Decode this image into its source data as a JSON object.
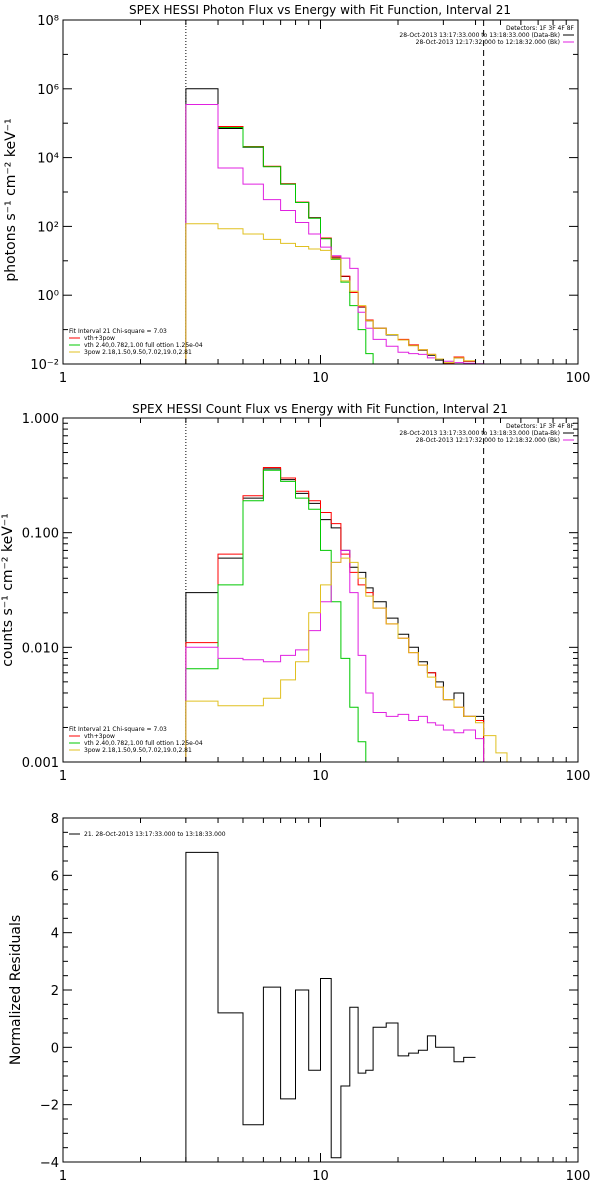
{
  "chart_data": [
    {
      "type": "line",
      "title": "SPEX HESSI Photon Flux vs Energy with Fit Function, Interval 21",
      "xlabel": "",
      "ylabel": "photons s⁻¹ cm⁻² keV⁻¹",
      "x_scale": "log",
      "y_scale": "log",
      "xlim": [
        1,
        100
      ],
      "ylim": [
        0.01,
        100000000
      ],
      "x_ticks": [
        {
          "v": 1,
          "t": "1"
        },
        {
          "v": 10,
          "t": "10"
        },
        {
          "v": 100,
          "t": "100"
        }
      ],
      "y_ticks": [
        {
          "v": 0.01,
          "t": "10⁻²"
        },
        {
          "v": 1,
          "t": "10⁰"
        },
        {
          "v": 100,
          "t": "10²"
        },
        {
          "v": 10000,
          "t": "10⁴"
        },
        {
          "v": 1000000,
          "t": "10⁶"
        },
        {
          "v": 100000000,
          "t": "10⁸"
        }
      ],
      "header": [
        "Detectors: 1F 3F 4F 8F",
        "28-Oct-2013 13:17:33.000 to 13:18:33.000 (Data-Bk)",
        "28-Oct-2013 12:17:32.000 to 12:18:32.000 (Bk)"
      ],
      "vlines": [
        {
          "x": 3,
          "style": "dotted"
        },
        {
          "x": 43,
          "style": "dashed"
        }
      ],
      "legend": {
        "title": "Fit Interval 21    Chi-square = 7.03",
        "entries": [
          "vth+3pow",
          "vth 2.40,0.782,1.00   full ottion 1.25e-04",
          "3pow 2.18,1.50,9.50,7.02,19.0,2.81"
        ]
      },
      "edges": [
        3,
        4,
        5,
        6,
        7,
        8,
        9,
        10,
        11,
        12,
        13,
        14,
        15,
        16,
        18,
        20,
        22,
        24,
        26,
        28,
        30,
        33,
        36,
        40,
        43
      ],
      "series": [
        {
          "color": "#000000",
          "values": [
            1000000,
            70000,
            20000,
            5500,
            1700,
            500,
            180,
            45,
            12,
            3.5,
            1.2,
            0.45,
            0.18,
            0.11,
            0.07,
            0.05,
            0.035,
            0.025,
            0.018,
            0.013,
            0.01,
            0.015,
            0.012,
            0.009
          ]
        },
        {
          "color": "#ff0000",
          "values": [
            350000,
            80000,
            21000,
            5600,
            1750,
            510,
            175,
            46,
            13,
            3.6,
            1.2,
            0.46,
            0.19,
            0.11,
            0.072,
            0.052,
            0.036,
            0.026,
            0.019,
            0.014,
            0.0105,
            0.016,
            0.012,
            0.009
          ]
        },
        {
          "color": "#00c800",
          "values": [
            350000,
            75000,
            20500,
            5450,
            1700,
            495,
            172,
            44,
            11,
            2.4,
            0.5,
            0.1,
            0.02,
            0.0095
          ]
        },
        {
          "color": "#e020e0",
          "values": [
            350000,
            5000,
            1700,
            600,
            290,
            130,
            60,
            25,
            14,
            12,
            6,
            0.32,
            0.11,
            0.052,
            0.033,
            0.022,
            0.02,
            0.019,
            0.015,
            0.014,
            0.012,
            0.011,
            0.0105,
            0.0102
          ]
        },
        {
          "color": "#e0c020",
          "values": [
            120,
            85,
            60,
            42,
            32,
            26,
            22,
            20,
            11.5,
            2.6,
            1.3,
            0.5,
            0.18,
            0.11,
            0.072,
            0.05,
            0.034,
            0.026,
            0.019,
            0.014,
            0.011,
            0.015,
            0.0125,
            0.0095
          ]
        }
      ]
    },
    {
      "type": "line",
      "title": "SPEX HESSI Count Flux vs Energy with Fit Function, Interval 21",
      "xlabel": "",
      "ylabel": "counts s⁻¹ cm⁻² keV⁻¹",
      "x_scale": "log",
      "y_scale": "log",
      "xlim": [
        1,
        100
      ],
      "ylim": [
        0.001,
        1
      ],
      "x_ticks": [
        {
          "v": 1,
          "t": "1"
        },
        {
          "v": 10,
          "t": "10"
        },
        {
          "v": 100,
          "t": "100"
        }
      ],
      "y_ticks": [
        {
          "v": 0.001,
          "t": "0.001"
        },
        {
          "v": 0.01,
          "t": "0.010"
        },
        {
          "v": 0.1,
          "t": "0.100"
        },
        {
          "v": 1,
          "t": "1.000"
        }
      ],
      "header": [
        "Detectors: 1F 3F 4F 8F",
        "28-Oct-2013 13:17:33.000 to 13:18:33.000 (Data-Bk)",
        "28-Oct-2013 12:17:32.000 to 12:18:32.000 (Bk)"
      ],
      "vlines": [
        {
          "x": 3,
          "style": "dotted"
        },
        {
          "x": 43,
          "style": "dashed"
        }
      ],
      "legend": {
        "title": "Fit Interval 21    Chi-square = 7.03",
        "entries": [
          "vth+3pow",
          "vth 2.40,0.782,1.00   full ottion 1.25e-04",
          "3pow 2.18,1.50,9.50,7.02,19.0,2.81"
        ]
      },
      "edges": [
        3,
        4,
        5,
        6,
        7,
        8,
        9,
        10,
        11,
        12,
        13,
        14,
        15,
        16,
        18,
        20,
        22,
        24,
        26,
        28,
        30,
        33,
        36,
        40,
        43,
        48,
        53
      ],
      "series": [
        {
          "color": "#000000",
          "values": [
            0.03,
            0.06,
            0.2,
            0.36,
            0.29,
            0.22,
            0.18,
            0.13,
            0.11,
            0.07,
            0.05,
            0.045,
            0.033,
            0.025,
            0.018,
            0.013,
            0.01,
            0.0075,
            0.006,
            0.005,
            0.0035,
            0.004,
            0.0025,
            0.0025
          ]
        },
        {
          "color": "#ff0000",
          "values": [
            0.011,
            0.065,
            0.21,
            0.37,
            0.3,
            0.23,
            0.19,
            0.15,
            0.12,
            0.065,
            0.045,
            0.035,
            0.03,
            0.022,
            0.016,
            0.012,
            0.009,
            0.007,
            0.006,
            0.0045,
            0.0035,
            0.003,
            0.0025,
            0.0023
          ]
        },
        {
          "color": "#00c800",
          "values": [
            0.0065,
            0.035,
            0.19,
            0.35,
            0.28,
            0.2,
            0.16,
            0.07,
            0.025,
            0.008,
            0.003,
            0.0015,
            0.0009
          ]
        },
        {
          "color": "#e020e0",
          "values": [
            0.01,
            0.008,
            0.0078,
            0.0075,
            0.0085,
            0.0095,
            0.014,
            0.025,
            0.055,
            0.07,
            0.03,
            0.0085,
            0.004,
            0.0027,
            0.0025,
            0.0026,
            0.0023,
            0.0025,
            0.0022,
            0.0021,
            0.0019,
            0.0018,
            0.0019,
            0.0016
          ]
        },
        {
          "color": "#e0c020",
          "values": [
            0.0034,
            0.0031,
            0.0031,
            0.0036,
            0.0052,
            0.0075,
            0.02,
            0.035,
            0.055,
            0.06,
            0.055,
            0.04,
            0.028,
            0.022,
            0.016,
            0.012,
            0.009,
            0.007,
            0.0055,
            0.0045,
            0.0035,
            0.003,
            0.0025,
            0.0022,
            0.0017,
            0.0012
          ]
        }
      ]
    },
    {
      "type": "line",
      "title": "",
      "xlabel": "",
      "ylabel": "Normalized Residuals",
      "x_scale": "log",
      "y_scale": "linear",
      "xlim": [
        1,
        100
      ],
      "ylim": [
        -4,
        8
      ],
      "x_ticks": [
        {
          "v": 1,
          "t": "1"
        },
        {
          "v": 10,
          "t": "10"
        },
        {
          "v": 100,
          "t": "100"
        }
      ],
      "y_ticks": [
        {
          "v": -4,
          "t": "−4"
        },
        {
          "v": -2,
          "t": "−2"
        },
        {
          "v": 0,
          "t": "0"
        },
        {
          "v": 2,
          "t": "2"
        },
        {
          "v": 4,
          "t": "4"
        },
        {
          "v": 6,
          "t": "6"
        },
        {
          "v": 8,
          "t": "8"
        }
      ],
      "legend": {
        "title": "",
        "entries": [
          "21. 28-Oct-2013 13:17:33.000 to 13:18:33.000"
        ]
      },
      "edges": [
        3,
        4,
        5,
        6,
        7,
        8,
        9,
        10,
        11,
        12,
        13,
        14,
        15,
        16,
        18,
        20,
        22,
        24,
        26,
        28,
        30,
        33,
        36,
        40
      ],
      "series": [
        {
          "color": "#000000",
          "values": [
            6.8,
            1.2,
            -2.7,
            2.1,
            -1.8,
            2.0,
            -0.8,
            2.4,
            -3.85,
            -1.35,
            1.4,
            -0.9,
            -0.8,
            0.7,
            0.85,
            -0.3,
            -0.2,
            -0.1,
            0.4,
            0.0,
            0.0,
            -0.5,
            -0.35
          ]
        }
      ]
    }
  ]
}
